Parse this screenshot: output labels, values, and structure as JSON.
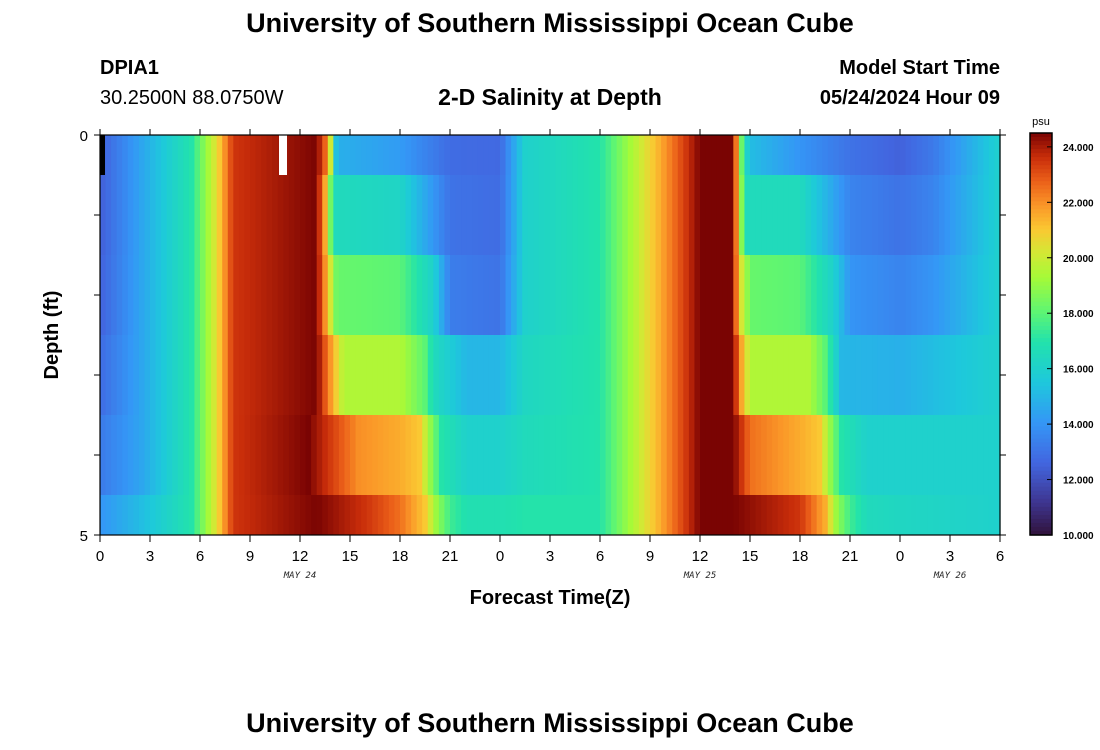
{
  "header": {
    "title": "University of Southern Mississippi Ocean Cube",
    "station_id": "DPIA1",
    "coordinates": "30.2500N  88.0750W",
    "plot_title": "2-D Salinity at Depth",
    "model_start_label": "Model Start Time",
    "model_start_value": "05/24/2024 Hour 09"
  },
  "footer": {
    "title": "University of Southern Mississippi Ocean Cube"
  },
  "colors": {
    "background": "#ffffff",
    "axis": "#000000"
  },
  "chart_data": {
    "type": "heatmap",
    "title": "2-D Salinity at Depth",
    "xlabel": "Forecast Time(Z)",
    "ylabel": "Depth (ft)",
    "y_tick_labels": [
      "0",
      "5"
    ],
    "ylim": [
      0,
      5
    ],
    "x_range_hours": [
      0,
      54
    ],
    "x_tick_labels": [
      "0",
      "3",
      "6",
      "9",
      "12",
      "15",
      "18",
      "21",
      "0",
      "3",
      "6",
      "9",
      "12",
      "15",
      "18",
      "21",
      "0",
      "3",
      "6"
    ],
    "date_labels": [
      {
        "text": "MAY 24",
        "hour": 12
      },
      {
        "text": "MAY 25",
        "hour": 36
      },
      {
        "text": "MAY 26",
        "hour": 51
      }
    ],
    "colorbar": {
      "unit": "psu",
      "min": 10,
      "max": 24.5,
      "tick_labels": [
        "24.000",
        "22.000",
        "20.000",
        "18.000",
        "16.000",
        "14.000",
        "12.000",
        "10.000"
      ],
      "tick_values": [
        24,
        22,
        20,
        18,
        16,
        14,
        12,
        10
      ]
    },
    "depth_layers": [
      "layer1",
      "layer2",
      "layer3",
      "layer4",
      "layer5"
    ],
    "columns_per_hour": 3,
    "salinity_keyframes_psu": [
      [
        [
          0,
          12.4
        ],
        [
          2.5,
          14.5
        ],
        [
          5.5,
          17
        ],
        [
          7,
          20.5
        ],
        [
          8,
          23.5
        ],
        [
          13,
          24.5
        ],
        [
          13.7,
          22
        ],
        [
          14.2,
          14.8
        ],
        [
          18,
          14.2
        ],
        [
          21,
          12.8
        ],
        [
          24,
          12.7
        ],
        [
          25.5,
          16
        ],
        [
          30,
          17
        ],
        [
          36,
          24.5
        ],
        [
          38,
          24.5
        ],
        [
          38.2,
          22
        ],
        [
          38.6,
          17
        ],
        [
          39,
          15.2
        ],
        [
          42,
          14
        ],
        [
          45,
          13
        ],
        [
          48,
          12.5
        ],
        [
          50,
          13.2
        ],
        [
          54,
          16
        ]
      ],
      [
        [
          0,
          12.4
        ],
        [
          2.5,
          14.5
        ],
        [
          5.5,
          17
        ],
        [
          7,
          20.5
        ],
        [
          8,
          23.5
        ],
        [
          13,
          24.5
        ],
        [
          13.6,
          21
        ],
        [
          14,
          16.5
        ],
        [
          18,
          16.2
        ],
        [
          21,
          13
        ],
        [
          24,
          12.8
        ],
        [
          25.5,
          16
        ],
        [
          30,
          17
        ],
        [
          36,
          24.5
        ],
        [
          38,
          24.5
        ],
        [
          38.2,
          22
        ],
        [
          38.7,
          16.5
        ],
        [
          42,
          16.5
        ],
        [
          45,
          13.5
        ],
        [
          48,
          13
        ],
        [
          50,
          13.5
        ],
        [
          54,
          16
        ]
      ],
      [
        [
          0,
          12.5
        ],
        [
          2.5,
          14.5
        ],
        [
          5.5,
          17
        ],
        [
          7,
          20.5
        ],
        [
          8,
          23.5
        ],
        [
          13,
          24.5
        ],
        [
          13.5,
          22
        ],
        [
          14.2,
          18.2
        ],
        [
          18,
          18
        ],
        [
          20,
          16
        ],
        [
          21,
          13.3
        ],
        [
          24,
          13
        ],
        [
          25.5,
          16
        ],
        [
          30,
          17
        ],
        [
          36,
          24.5
        ],
        [
          38,
          24.5
        ],
        [
          38.3,
          21
        ],
        [
          39,
          18.2
        ],
        [
          42,
          18
        ],
        [
          44,
          16
        ],
        [
          45,
          14
        ],
        [
          48,
          13.5
        ],
        [
          50,
          14
        ],
        [
          54,
          16
        ]
      ],
      [
        [
          0,
          12.8
        ],
        [
          2.5,
          14.5
        ],
        [
          5.5,
          17
        ],
        [
          7,
          20.5
        ],
        [
          8,
          23.5
        ],
        [
          13,
          24.5
        ],
        [
          13.8,
          22
        ],
        [
          14.6,
          19.5
        ],
        [
          18,
          19.5
        ],
        [
          19.5,
          18
        ],
        [
          20,
          16.5
        ],
        [
          22,
          15
        ],
        [
          24,
          15
        ],
        [
          25.5,
          16.3
        ],
        [
          30,
          17
        ],
        [
          36,
          24.5
        ],
        [
          38,
          24.5
        ],
        [
          38.4,
          22
        ],
        [
          39,
          19.5
        ],
        [
          42.5,
          19.5
        ],
        [
          43.5,
          18
        ],
        [
          44.5,
          15
        ],
        [
          48,
          14.8
        ],
        [
          54,
          16
        ]
      ],
      [
        [
          0,
          13.2
        ],
        [
          2.5,
          14.5
        ],
        [
          5.5,
          17
        ],
        [
          7,
          20.5
        ],
        [
          8,
          23.5
        ],
        [
          12.5,
          24.5
        ],
        [
          15.5,
          22
        ],
        [
          18,
          21.5
        ],
        [
          19.2,
          21
        ],
        [
          19.8,
          19
        ],
        [
          20.5,
          17
        ],
        [
          22,
          16
        ],
        [
          24,
          16
        ],
        [
          25.5,
          16.5
        ],
        [
          30,
          17
        ],
        [
          36,
          24.5
        ],
        [
          38,
          24.5
        ],
        [
          39,
          22.5
        ],
        [
          42,
          21.5
        ],
        [
          43.2,
          21
        ],
        [
          43.8,
          19
        ],
        [
          44.5,
          17
        ],
        [
          46,
          16
        ],
        [
          48,
          16
        ],
        [
          54,
          16
        ]
      ],
      [
        [
          0,
          14
        ],
        [
          2.5,
          15.2
        ],
        [
          5.5,
          17
        ],
        [
          7,
          20.5
        ],
        [
          8,
          23.5
        ],
        [
          13,
          24.5
        ],
        [
          16,
          23.5
        ],
        [
          18,
          22.5
        ],
        [
          19.5,
          21
        ],
        [
          20.2,
          19
        ],
        [
          21,
          17.5
        ],
        [
          22,
          16.8
        ],
        [
          24,
          16.8
        ],
        [
          25.5,
          17
        ],
        [
          30,
          17
        ],
        [
          36,
          24.5
        ],
        [
          38,
          24.5
        ],
        [
          42,
          23.5
        ],
        [
          43.5,
          21.5
        ],
        [
          44.2,
          19
        ],
        [
          45,
          17.5
        ],
        [
          46,
          16.5
        ],
        [
          48,
          16.3
        ],
        [
          54,
          16
        ]
      ]
    ]
  }
}
